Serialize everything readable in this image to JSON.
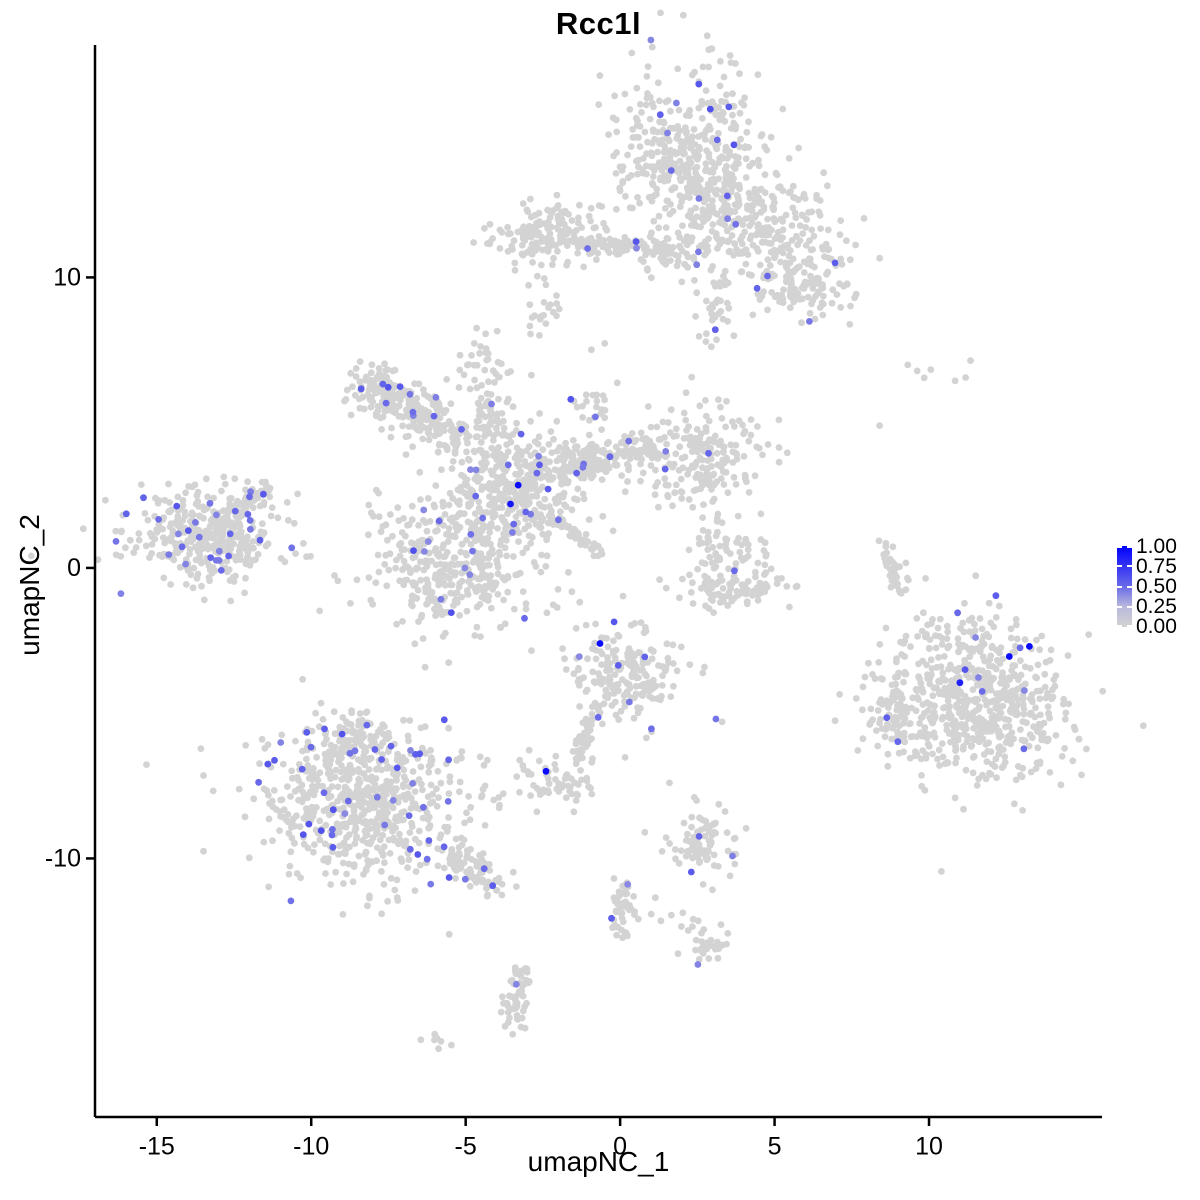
{
  "title": "Rcc1l",
  "chart_data": {
    "type": "scatter",
    "title": "Rcc1l",
    "xlabel": "umapNC_1",
    "ylabel": "umapNC_2",
    "xlim": [
      -17.0,
      15.6
    ],
    "ylim": [
      -18.9,
      18.0
    ],
    "x_ticks": [
      "-15",
      "-10",
      "-5",
      "0",
      "5",
      "10"
    ],
    "x_tick_values": [
      -15,
      -10,
      -5,
      0,
      5,
      10
    ],
    "y_ticks": [
      "10",
      "0",
      "-10"
    ],
    "y_tick_values": [
      10,
      0,
      -10
    ],
    "grid": false,
    "legend": {
      "title": "",
      "labels": [
        "1.00",
        "0.75",
        "0.50",
        "0.25",
        "0.00"
      ],
      "min": 0.0,
      "max": 1.0,
      "position": "right"
    },
    "colors": {
      "low": "#d3d3d3",
      "high": "#0000ff",
      "background": "#ffffff",
      "axis": "#000000"
    },
    "point_radius": 3.4,
    "seed": 7,
    "hl_t": [
      0.35,
      0.62
    ],
    "clusters": [
      {
        "name": "top-main",
        "cx": 2.3,
        "cy": 14.2,
        "sx": 1.15,
        "sy": 1.5,
        "n": 420,
        "hl": 10
      },
      {
        "name": "top-right-arm",
        "cx": 4.7,
        "cy": 11.7,
        "sx": 1.35,
        "sy": 0.85,
        "rot": -20,
        "n": 260,
        "hl": 3
      },
      {
        "name": "top-lower-lobe",
        "cx": 5.8,
        "cy": 9.7,
        "sx": 0.75,
        "sy": 0.6,
        "n": 110,
        "hl": 4
      },
      {
        "name": "top-spike",
        "cx": 3.1,
        "cy": 8.9,
        "sx": 0.3,
        "sy": 0.65,
        "n": 35,
        "hl": 1
      },
      {
        "name": "top-left-strand",
        "cx": 1.6,
        "cy": 10.9,
        "sx": 0.75,
        "sy": 0.35,
        "n": 50,
        "hl": 2
      },
      {
        "name": "band-blob",
        "cx": -2.1,
        "cy": 11.5,
        "sx": 0.85,
        "sy": 0.5,
        "n": 170,
        "hl": 0
      },
      {
        "name": "band-line",
        "line": [
          -1.2,
          11.15,
          1.4,
          11.05
        ],
        "jit": 0.12,
        "n": 55,
        "hl": 3
      },
      {
        "name": "band-sub-blob",
        "cx": -2.55,
        "cy": 8.8,
        "sx": 0.3,
        "sy": 0.4,
        "n": 20,
        "hl": 0
      },
      {
        "name": "band-left-dots",
        "cx": -4.0,
        "cy": 11.3,
        "sx": 0.4,
        "sy": 0.25,
        "n": 8,
        "hl": 0
      },
      {
        "name": "central-arm-ul",
        "line": [
          -7.9,
          6.2,
          -5.0,
          4.3
        ],
        "jit": 0.45,
        "n": 230,
        "hl": 8
      },
      {
        "name": "central-arm-tip",
        "cx": -8.0,
        "cy": 6.3,
        "sx": 0.4,
        "sy": 0.35,
        "n": 40,
        "hl": 3
      },
      {
        "name": "central-top-spur",
        "cx": -4.2,
        "cy": 5.3,
        "sx": 0.4,
        "sy": 1.1,
        "n": 70,
        "hl": 1
      },
      {
        "name": "central-upper-dots",
        "cx": -4.8,
        "cy": 7.3,
        "sx": 0.45,
        "sy": 0.5,
        "n": 18,
        "hl": 0
      },
      {
        "name": "central-trail",
        "cx": -0.9,
        "cy": 5.4,
        "sx": 0.45,
        "sy": 0.9,
        "n": 30,
        "hl": 1
      },
      {
        "name": "central-core",
        "cx": -3.3,
        "cy": 2.9,
        "sx": 1.05,
        "sy": 0.95,
        "n": 330,
        "hl": 13
      },
      {
        "name": "central-arm-right",
        "line": [
          -2.2,
          3.4,
          1.2,
          4.1
        ],
        "jit": 0.3,
        "n": 170,
        "hl": 5
      },
      {
        "name": "central-right-blob",
        "cx": 2.6,
        "cy": 3.7,
        "sx": 0.95,
        "sy": 1.0,
        "n": 200,
        "hl": 3
      },
      {
        "name": "central-streak",
        "line": [
          -2.6,
          2.1,
          -0.6,
          0.5
        ],
        "jit": 0.1,
        "n": 60,
        "hl": 1
      },
      {
        "name": "central-lower-lobe",
        "cx": -5.1,
        "cy": 0.3,
        "sx": 1.45,
        "sy": 1.15,
        "n": 380,
        "hl": 13
      },
      {
        "name": "central-lower-tip",
        "cx": -5.9,
        "cy": -1.0,
        "sx": 0.5,
        "sy": 0.35,
        "n": 30,
        "hl": 1
      },
      {
        "name": "left-island",
        "cx": -13.3,
        "cy": 1.1,
        "sx": 1.25,
        "sy": 0.8,
        "n": 360,
        "hl": 28
      },
      {
        "name": "left-island-tail",
        "line": [
          -12.4,
          2.0,
          -11.3,
          2.9
        ],
        "jit": 0.15,
        "n": 30,
        "hl": 3
      },
      {
        "name": "crescent-top",
        "cx": 3.6,
        "cy": 0.9,
        "sx": 0.5,
        "sy": 0.45,
        "n": 30,
        "hl": 0
      },
      {
        "name": "crescent-bottom",
        "cx": 3.6,
        "cy": -0.7,
        "sx": 0.9,
        "sy": 0.35,
        "n": 80,
        "hl": 0
      },
      {
        "name": "crescent-left",
        "cx": 2.9,
        "cy": 0.2,
        "sx": 0.3,
        "sy": 0.6,
        "n": 25,
        "hl": 0
      },
      {
        "name": "crescent-right",
        "cx": 4.7,
        "cy": 0.1,
        "sx": 0.35,
        "sy": 0.5,
        "n": 18,
        "hl": 0
      },
      {
        "name": "right-island",
        "cx": 11.6,
        "cy": -4.7,
        "sx": 1.5,
        "sy": 1.25,
        "n": 600,
        "hl": 7
      },
      {
        "name": "right-island-lobe",
        "cx": 8.9,
        "cy": -4.7,
        "sx": 0.45,
        "sy": 0.75,
        "n": 55,
        "hl": 2
      },
      {
        "name": "right-island-top",
        "cx": 10.6,
        "cy": -2.1,
        "sx": 1.1,
        "sy": 0.45,
        "n": 40,
        "hl": 1
      },
      {
        "name": "mid-bottom",
        "cx": 0.2,
        "cy": -3.6,
        "sx": 0.8,
        "sy": 0.8,
        "n": 200,
        "hl": 6
      },
      {
        "name": "mid-bottom-tail",
        "line": [
          -0.9,
          -4.9,
          -1.4,
          -6.6
        ],
        "jit": 0.12,
        "n": 40,
        "hl": 0
      },
      {
        "name": "bottomleft-main",
        "cx": -8.3,
        "cy": -8.1,
        "sx": 1.65,
        "sy": 1.35,
        "n": 620,
        "hl": 40
      },
      {
        "name": "bottomleft-top",
        "cx": -8.7,
        "cy": -5.9,
        "sx": 0.65,
        "sy": 0.5,
        "n": 70,
        "hl": 5
      },
      {
        "name": "bottomleft-tail",
        "line": [
          -5.6,
          -9.8,
          -3.9,
          -10.9
        ],
        "jit": 0.3,
        "n": 80,
        "hl": 4
      },
      {
        "name": "small-center-low",
        "cx": -2.0,
        "cy": -7.2,
        "sx": 0.65,
        "sy": 0.45,
        "n": 65,
        "hl": 0
      },
      {
        "name": "small-right-low",
        "cx": 2.7,
        "cy": -9.5,
        "sx": 0.55,
        "sy": 0.55,
        "n": 75,
        "hl": 3
      },
      {
        "name": "strand-bottom",
        "line": [
          0.1,
          -10.9,
          0.1,
          -12.6
        ],
        "jit": 0.2,
        "n": 45,
        "hl": 2
      },
      {
        "name": "strand-bottom-dots",
        "cx": 1.4,
        "cy": -11.9,
        "sx": 0.6,
        "sy": 0.25,
        "n": 10,
        "hl": 0
      },
      {
        "name": "blob-bottom",
        "cx": 2.7,
        "cy": -12.8,
        "sx": 0.4,
        "sy": 0.35,
        "n": 30,
        "hl": 1
      },
      {
        "name": "column-bottom",
        "line": [
          -3.2,
          -13.8,
          -3.5,
          -15.7
        ],
        "jit": 0.25,
        "n": 55,
        "hl": 1
      },
      {
        "name": "tiny-bottom",
        "cx": -6.0,
        "cy": -16.3,
        "sx": 0.25,
        "sy": 0.2,
        "n": 7,
        "hl": 0
      },
      {
        "name": "right-streak",
        "line": [
          8.6,
          1.0,
          8.9,
          -0.8
        ],
        "jit": 0.12,
        "n": 30,
        "hl": 0
      },
      {
        "name": "right-streak-dots",
        "cx": 9.15,
        "cy": 0.15,
        "sx": 0.12,
        "sy": 0.45,
        "n": 3,
        "hl": 0
      },
      {
        "name": "sparse-topright",
        "cx": 10.0,
        "cy": 6.8,
        "sx": 1.0,
        "sy": 0.25,
        "n": 7,
        "hl": 0
      }
    ],
    "extra_points": [
      [
        -0.65,
        -2.6,
        0.95
      ],
      [
        -2.4,
        -7.0,
        0.95
      ],
      [
        12.6,
        -3.05,
        0.95
      ],
      [
        13.25,
        -2.7,
        0.95
      ],
      [
        12.95,
        -2.75,
        0.5
      ],
      [
        11.0,
        -3.95,
        0.85
      ],
      [
        -3.3,
        2.85,
        0.95
      ],
      [
        -3.55,
        2.2,
        0.9
      ],
      [
        3.1,
        -5.2,
        0.45
      ],
      [
        3.7,
        -0.1,
        0.5
      ],
      [
        1.3,
        15.6,
        0.55
      ],
      [
        -0.8,
        5.2,
        0.45
      ],
      [
        8.4,
        4.9,
        0
      ],
      [
        3.3,
        -5.3,
        0
      ],
      [
        -4.3,
        -11.3,
        0
      ],
      [
        1.6,
        -7.4,
        0
      ],
      [
        2.4,
        -7.9,
        0
      ],
      [
        0.8,
        -9.1,
        0
      ],
      [
        9.3,
        -0.35,
        0
      ],
      [
        9.25,
        -0.75,
        0
      ]
    ]
  }
}
